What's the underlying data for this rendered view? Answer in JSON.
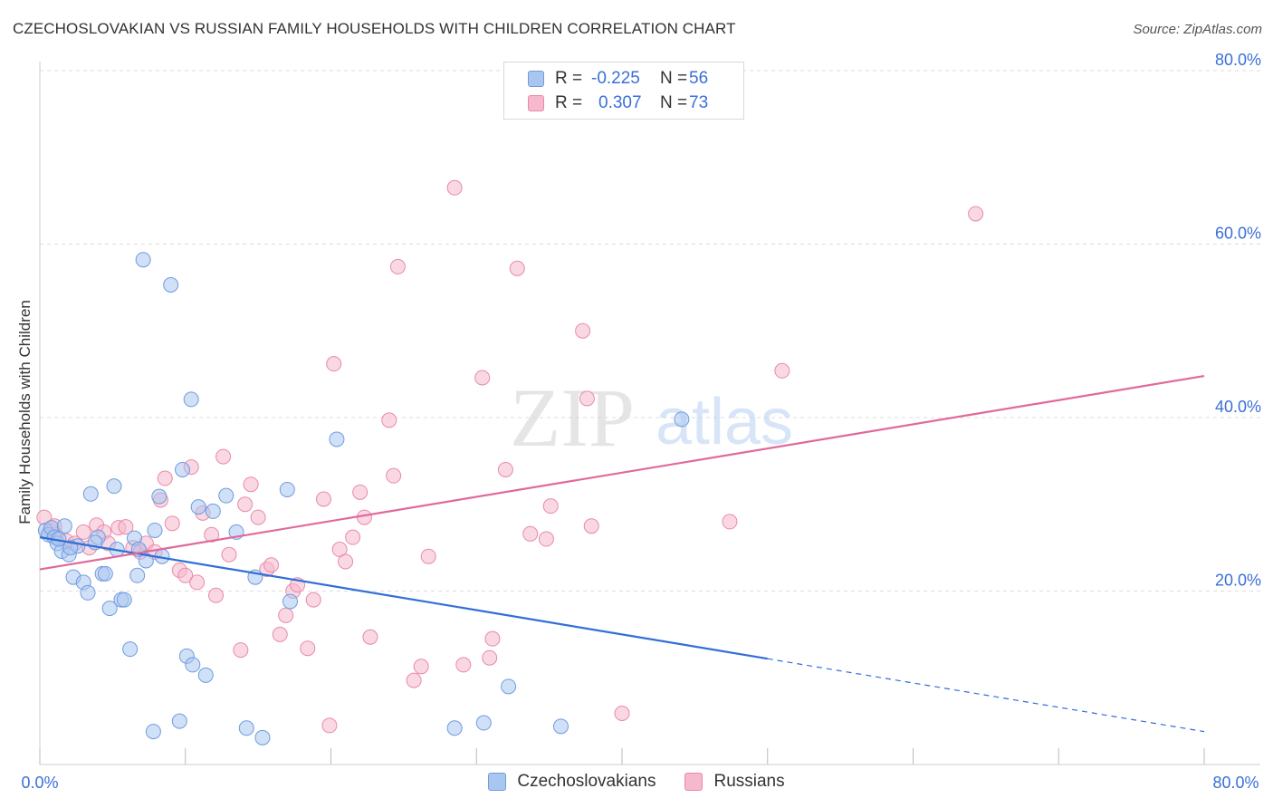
{
  "title": "CZECHOSLOVAKIAN VS RUSSIAN FAMILY HOUSEHOLDS WITH CHILDREN CORRELATION CHART",
  "source": "Source: ZipAtlas.com",
  "watermark": {
    "part1": "ZIP",
    "part2": "atlas"
  },
  "legend": {
    "rows": [
      {
        "r_label": "R =",
        "r_value": "-0.225",
        "n_label": "N =",
        "n_value": "56"
      },
      {
        "r_label": "R =",
        "r_value": "0.307",
        "n_label": "N =",
        "n_value": "73"
      }
    ]
  },
  "bottom_legend": {
    "series1": "Czechoslovakians",
    "series2": "Russians"
  },
  "colors": {
    "blue_fill": "#a9c6f0",
    "blue_stroke": "#6f9be0",
    "blue_line": "#2f6fd6",
    "pink_fill": "#f5b8cc",
    "pink_stroke": "#e88aa8",
    "pink_line": "#e0699a",
    "axis_text": "#3a6fd8",
    "grid": "#dddddd"
  },
  "chart_data": {
    "type": "scatter",
    "title": "CZECHOSLOVAKIAN VS RUSSIAN FAMILY HOUSEHOLDS WITH CHILDREN CORRELATION CHART",
    "xlabel": "",
    "ylabel": "Family Households with Children",
    "xlim": [
      0,
      80
    ],
    "ylim": [
      0,
      80
    ],
    "x_tick_labels": [
      "0.0%",
      "80.0%"
    ],
    "y_ticks": [
      20,
      40,
      60,
      80
    ],
    "y_tick_labels": [
      "20.0%",
      "40.0%",
      "60.0%",
      "80.0%"
    ],
    "grid": true,
    "series": [
      {
        "name": "Czechoslovakians",
        "r": -0.225,
        "n": 56,
        "trend": {
          "x_start": 0,
          "y_start": 26.2,
          "x_solid_end": 50,
          "y_solid_end": 12.2,
          "x_end": 80,
          "y_end": 3.8
        },
        "points": [
          [
            0.4,
            27.0
          ],
          [
            0.6,
            26.5
          ],
          [
            0.8,
            27.3
          ],
          [
            1.0,
            26.2
          ],
          [
            1.2,
            25.5
          ],
          [
            1.5,
            24.6
          ],
          [
            1.7,
            27.5
          ],
          [
            2.0,
            24.2
          ],
          [
            2.3,
            21.6
          ],
          [
            2.6,
            25.2
          ],
          [
            3.0,
            21.0
          ],
          [
            3.3,
            19.8
          ],
          [
            3.5,
            31.2
          ],
          [
            4.0,
            26.2
          ],
          [
            4.3,
            22.0
          ],
          [
            4.5,
            22.0
          ],
          [
            4.8,
            18.0
          ],
          [
            5.1,
            32.1
          ],
          [
            5.3,
            24.8
          ],
          [
            5.6,
            19.0
          ],
          [
            5.8,
            19.0
          ],
          [
            6.2,
            13.3
          ],
          [
            6.5,
            26.1
          ],
          [
            6.7,
            21.8
          ],
          [
            6.8,
            24.8
          ],
          [
            7.1,
            58.2
          ],
          [
            7.3,
            23.5
          ],
          [
            7.8,
            3.8
          ],
          [
            7.9,
            27.0
          ],
          [
            8.2,
            30.9
          ],
          [
            8.4,
            24.0
          ],
          [
            9.0,
            55.3
          ],
          [
            9.6,
            5.0
          ],
          [
            9.8,
            34.0
          ],
          [
            10.1,
            12.5
          ],
          [
            10.4,
            42.1
          ],
          [
            10.5,
            11.5
          ],
          [
            10.9,
            29.7
          ],
          [
            11.4,
            10.3
          ],
          [
            11.9,
            29.2
          ],
          [
            12.8,
            31.0
          ],
          [
            13.5,
            26.8
          ],
          [
            14.2,
            4.2
          ],
          [
            14.8,
            21.6
          ],
          [
            15.3,
            3.1
          ],
          [
            17.0,
            31.7
          ],
          [
            17.2,
            18.8
          ],
          [
            20.4,
            37.5
          ],
          [
            28.5,
            4.2
          ],
          [
            30.5,
            4.8
          ],
          [
            32.2,
            9.0
          ],
          [
            35.8,
            4.4
          ],
          [
            44.1,
            39.8
          ],
          [
            1.3,
            26.0
          ],
          [
            3.8,
            25.6
          ],
          [
            2.1,
            25.0
          ]
        ]
      },
      {
        "name": "Russians",
        "r": 0.307,
        "n": 73,
        "trend": {
          "x_start": 0,
          "y_start": 22.5,
          "x_end": 80,
          "y_end": 44.8
        },
        "points": [
          [
            0.3,
            28.5
          ],
          [
            0.7,
            27.0
          ],
          [
            1.1,
            26.5
          ],
          [
            1.8,
            25.8
          ],
          [
            2.4,
            25.5
          ],
          [
            3.0,
            26.8
          ],
          [
            3.4,
            25.0
          ],
          [
            3.9,
            27.6
          ],
          [
            4.4,
            26.8
          ],
          [
            4.7,
            25.5
          ],
          [
            5.4,
            27.3
          ],
          [
            5.9,
            27.4
          ],
          [
            6.4,
            25.0
          ],
          [
            6.9,
            24.5
          ],
          [
            7.3,
            25.5
          ],
          [
            7.9,
            24.5
          ],
          [
            8.3,
            30.5
          ],
          [
            8.6,
            33.0
          ],
          [
            9.1,
            27.8
          ],
          [
            9.6,
            22.4
          ],
          [
            10.0,
            21.8
          ],
          [
            10.4,
            34.3
          ],
          [
            10.8,
            21.0
          ],
          [
            11.2,
            29.0
          ],
          [
            11.8,
            26.5
          ],
          [
            12.1,
            19.5
          ],
          [
            12.6,
            35.5
          ],
          [
            13.0,
            24.2
          ],
          [
            13.8,
            13.2
          ],
          [
            14.1,
            30.0
          ],
          [
            14.5,
            32.3
          ],
          [
            15.0,
            28.5
          ],
          [
            15.6,
            22.5
          ],
          [
            15.9,
            23.0
          ],
          [
            16.5,
            15.0
          ],
          [
            16.9,
            17.2
          ],
          [
            17.4,
            20.0
          ],
          [
            17.7,
            20.7
          ],
          [
            18.4,
            13.4
          ],
          [
            18.8,
            19.0
          ],
          [
            19.5,
            30.6
          ],
          [
            19.9,
            4.5
          ],
          [
            20.2,
            46.2
          ],
          [
            20.6,
            24.8
          ],
          [
            21.0,
            23.4
          ],
          [
            21.5,
            26.2
          ],
          [
            22.0,
            31.4
          ],
          [
            22.3,
            28.5
          ],
          [
            22.7,
            14.7
          ],
          [
            24.0,
            39.7
          ],
          [
            24.3,
            33.3
          ],
          [
            24.6,
            57.4
          ],
          [
            25.7,
            9.7
          ],
          [
            26.2,
            11.3
          ],
          [
            26.7,
            24.0
          ],
          [
            28.5,
            66.5
          ],
          [
            29.1,
            11.5
          ],
          [
            30.4,
            44.6
          ],
          [
            30.9,
            12.3
          ],
          [
            31.1,
            14.5
          ],
          [
            32.0,
            34.0
          ],
          [
            32.8,
            57.2
          ],
          [
            33.7,
            26.6
          ],
          [
            34.8,
            26.0
          ],
          [
            35.1,
            29.8
          ],
          [
            37.3,
            50.0
          ],
          [
            37.6,
            42.2
          ],
          [
            37.9,
            27.5
          ],
          [
            40.0,
            5.9
          ],
          [
            47.4,
            28.0
          ],
          [
            51.0,
            45.4
          ],
          [
            64.3,
            63.5
          ],
          [
            1.0,
            27.5
          ]
        ]
      }
    ]
  }
}
